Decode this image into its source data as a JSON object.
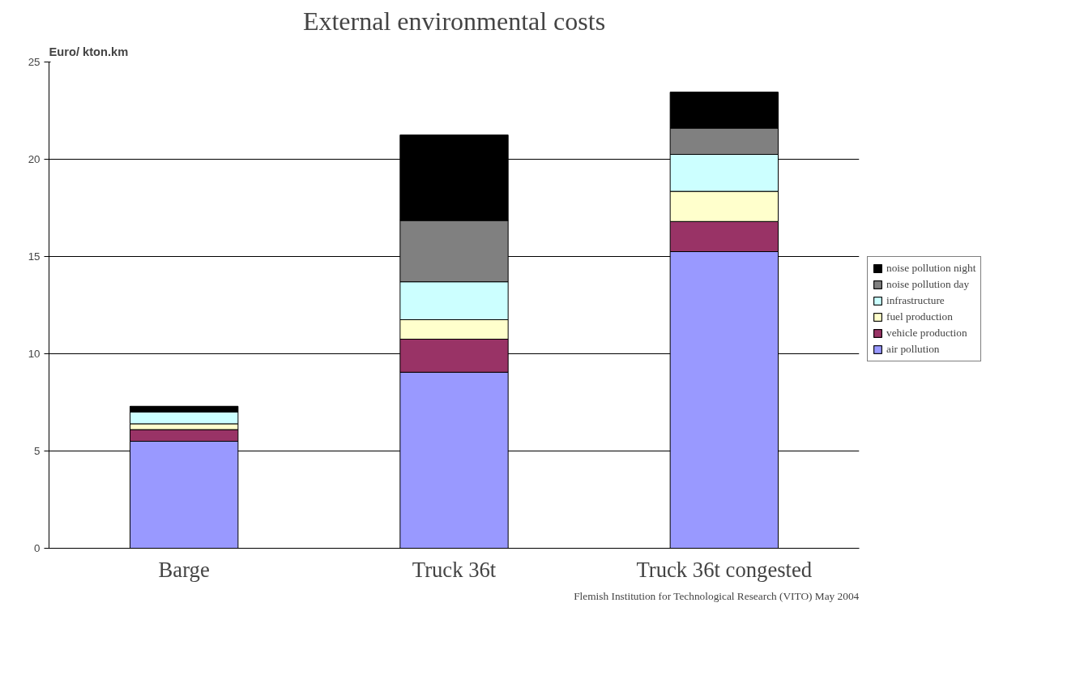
{
  "chart_data": {
    "type": "bar",
    "stacked": true,
    "title": "External environmental costs",
    "ylabel": "Euro/ kton.km",
    "categories": [
      "Barge",
      "Truck 36t",
      "Truck 36t congested"
    ],
    "series": [
      {
        "name": "air pollution",
        "color": "#9999ff",
        "values": [
          5.5,
          9.05,
          15.25
        ]
      },
      {
        "name": "vehicle production",
        "color": "#993366",
        "values": [
          0.6,
          1.7,
          1.55
        ]
      },
      {
        "name": "fuel production",
        "color": "#ffffcc",
        "values": [
          0.3,
          1.0,
          1.55
        ]
      },
      {
        "name": "infrastructure",
        "color": "#ccffff",
        "values": [
          0.6,
          1.95,
          1.9
        ]
      },
      {
        "name": "noise pollution day",
        "color": "#808080",
        "values": [
          0,
          3.15,
          1.35
        ]
      },
      {
        "name": "noise pollution night",
        "color": "#000000",
        "values": [
          0.3,
          4.4,
          1.85
        ]
      }
    ],
    "ylim": [
      0,
      25
    ],
    "yticks": [
      0,
      5,
      10,
      15,
      20,
      25
    ],
    "grid": "y",
    "legend": "right",
    "annotations": [
      "Flemish Institution for Technological Research (VITO) May 2004"
    ]
  }
}
